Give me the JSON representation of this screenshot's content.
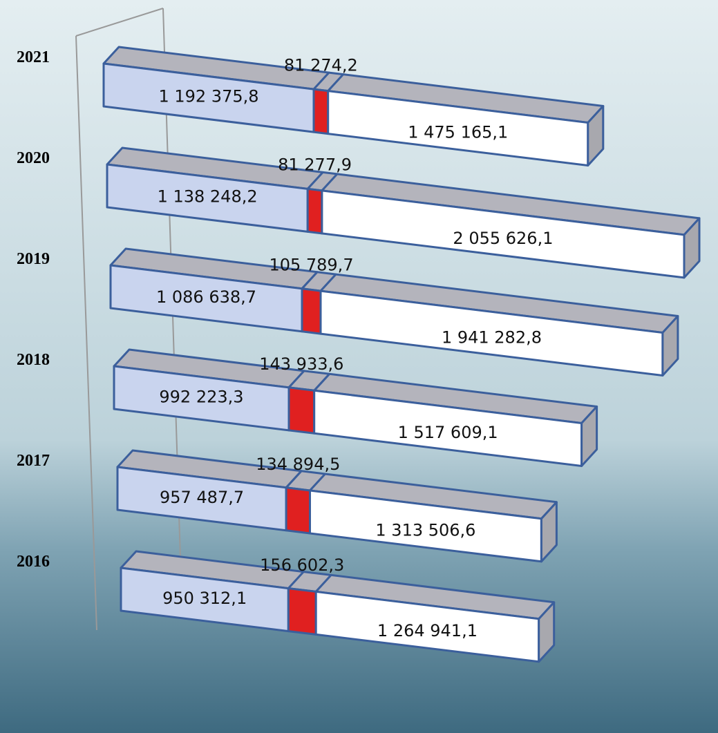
{
  "chart_data": {
    "type": "bar3d",
    "categories": [
      "2021",
      "2020",
      "2019",
      "2018",
      "2017",
      "2016"
    ],
    "series": [
      {
        "color": "#c9d4ee",
        "values": [
          1192375.8,
          1138248.2,
          1086638.7,
          992223.3,
          957487.7,
          950312.1
        ],
        "value_labels": [
          "1 192 375,8",
          "1 138 248,2",
          "1 086 638,7",
          "992 223,3",
          "957 487,7",
          "950 312,1"
        ]
      },
      {
        "color": "#e02020",
        "values": [
          81274.2,
          81277.9,
          105789.7,
          143933.6,
          134894.5,
          156602.3
        ],
        "value_labels": [
          "81 274,2",
          "81 277,9",
          "105 789,7",
          "143 933,6",
          "134 894,5",
          "156 602,3"
        ]
      },
      {
        "color": "#ffffff",
        "values": [
          1475165.1,
          2055626.1,
          1941282.8,
          1517609.1,
          1313506.6,
          1264941.1
        ],
        "value_labels": [
          "1 475 165,1",
          "2 055 626,1",
          "1 941 282,8",
          "1 517 609,1",
          "1 313 506,6",
          "1 264 941,1"
        ]
      }
    ]
  }
}
